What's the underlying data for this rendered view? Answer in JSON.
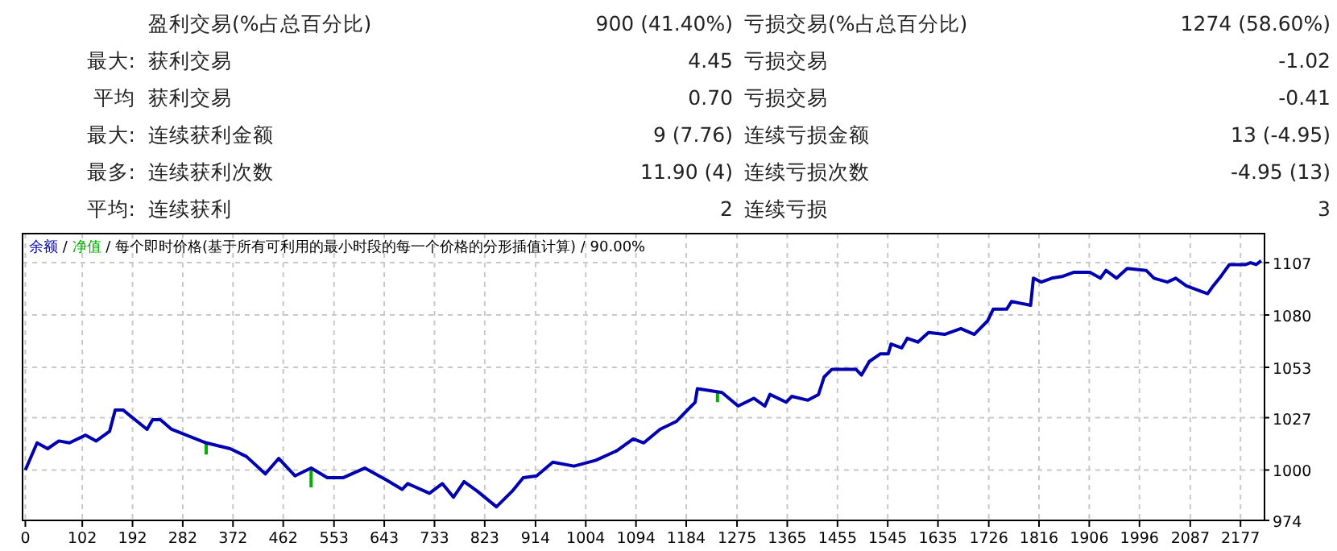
{
  "chart_data": [
    {
      "type": "other",
      "annotations": [
        null,
        "盈利交易(%占总百分比)",
        "900 (41.40%)",
        "亏损交易(%占总百分比)",
        "1274 (58.60%)",
        "最大:",
        "获利交易",
        "4.45",
        "亏损交易",
        "-1.02",
        "平均",
        "获利交易",
        "0.70",
        "亏损交易",
        "-0.41",
        "最大:",
        "连续获利金额",
        "9 (7.76)",
        "连续亏损金额",
        "13 (-4.95)",
        "最多:",
        "连续获利次数",
        "11.90 (4)",
        "连续亏损次数",
        "-4.95 (13)",
        "平均:",
        "连续获利",
        "2",
        "连续亏损",
        "3"
      ]
    },
    {
      "type": "line",
      "subtitle": "/ 每个即时价格(基于所有可利用的最小时段的每一个价格的分形插值计算) / 90.00%",
      "legend": "top left",
      "annotations": [
        "/"
      ],
      "grid": true,
      "line_style": "solid",
      "xlim": [
        -5,
        2220
      ],
      "ylim": [
        974,
        1122
      ],
      "xticks": [
        0,
        102,
        192,
        282,
        372,
        462,
        553,
        643,
        733,
        823,
        914,
        1004,
        1094,
        1184,
        1275,
        1365,
        1455,
        1545,
        1635,
        1726,
        1816,
        1906,
        1996,
        2087,
        2177
      ],
      "yticks": [
        974,
        1000,
        1027,
        1053,
        1080,
        1107
      ],
      "series": [
        {
          "name": "净值",
          "color": "#00b000",
          "x": [
            324,
            324,
            null,
            512,
            512,
            null,
            1240,
            1240
          ],
          "values": [
            1014,
            1008,
            null,
            1001,
            991,
            null,
            1040,
            1035
          ]
        },
        {
          "name": "余额",
          "color": "#0000b0",
          "x": [
            0,
            21,
            40,
            60,
            79,
            108,
            127,
            151,
            161,
            175,
            218,
            228,
            242,
            262,
            324,
            367,
            396,
            430,
            454,
            483,
            512,
            541,
            569,
            608,
            646,
            675,
            685,
            724,
            747,
            767,
            786,
            810,
            844,
            872,
            892,
            916,
            945,
            983,
            1022,
            1060,
            1089,
            1108,
            1137,
            1166,
            1200,
            1204,
            1248,
            1277,
            1305,
            1325,
            1334,
            1363,
            1373,
            1402,
            1421,
            1431,
            1445,
            1488,
            1498,
            1512,
            1532,
            1546,
            1551,
            1570,
            1580,
            1599,
            1618,
            1647,
            1676,
            1700,
            1724,
            1734,
            1758,
            1767,
            1801,
            1806,
            1820,
            1839,
            1859,
            1878,
            1907,
            1926,
            1936,
            1955,
            1974,
            2008,
            2022,
            2046,
            2061,
            2080,
            2118,
            2128,
            2142,
            2157,
            2186,
            2195,
            2205,
            2214
          ],
          "values": [
            1000,
            1014,
            1011,
            1015,
            1014,
            1018,
            1015,
            1020,
            1031,
            1031,
            1021,
            1026,
            1026,
            1021,
            1014,
            1011,
            1007,
            998,
            1006,
            997,
            1001,
            996,
            996,
            1001,
            995,
            990,
            993,
            988,
            993,
            986,
            994,
            989,
            981,
            989,
            996,
            997,
            1004,
            1002,
            1005,
            1010,
            1016,
            1014,
            1021,
            1025,
            1035,
            1042,
            1040,
            1033,
            1037,
            1033,
            1039,
            1035,
            1038,
            1036,
            1039,
            1048,
            1052,
            1052,
            1049,
            1056,
            1060,
            1060,
            1065,
            1063,
            1068,
            1066,
            1071,
            1070,
            1073,
            1070,
            1077,
            1083,
            1083,
            1087,
            1085,
            1099,
            1097,
            1099,
            1100,
            1102,
            1102,
            1099,
            1103,
            1099,
            1104,
            1103,
            1099,
            1097,
            1099,
            1095,
            1091,
            1095,
            1100,
            1106,
            1106,
            1107,
            1106,
            1108
          ]
        }
      ]
    }
  ]
}
